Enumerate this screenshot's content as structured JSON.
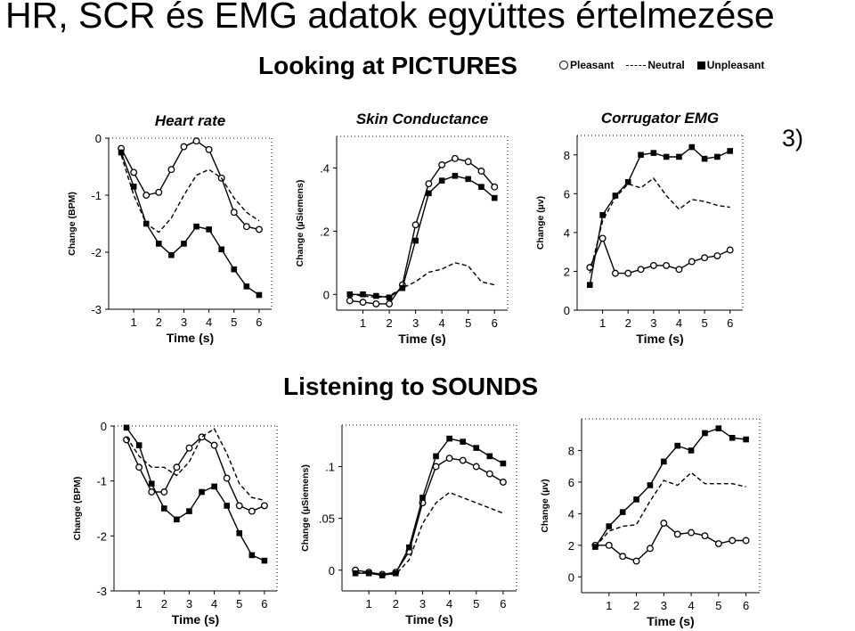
{
  "slide": {
    "title": "HR, SCR és EMG adatok együttes értelmezése",
    "number": "3)"
  },
  "legend": {
    "pleasant": "Pleasant",
    "neutral": "Neutral",
    "unpleasant": "Unpleasant"
  },
  "sections": [
    {
      "title": "Looking at PICTURES"
    },
    {
      "title": "Listening to SOUNDS"
    }
  ],
  "chart_data": [
    {
      "type": "line",
      "section": 0,
      "title": "Heart rate",
      "xlabel": "Time (s)",
      "ylabel": "Change (BPM)",
      "ylim": [
        -3,
        0
      ],
      "xlim": [
        0,
        6.5
      ],
      "yticks": [
        0,
        -1,
        -2,
        -3
      ],
      "ytick_labels": [
        "0",
        "-1",
        "-2",
        "-3"
      ],
      "xticks": [
        1,
        2,
        3,
        4,
        5,
        6
      ],
      "xtick_labels": [
        "1",
        "2",
        "3",
        "4",
        "5",
        "6"
      ],
      "x": [
        0.5,
        1,
        1.5,
        2,
        2.5,
        3,
        3.5,
        4,
        4.5,
        5,
        5.5,
        6
      ],
      "series": [
        {
          "name": "Pleasant",
          "marker": "circle",
          "dashed": false,
          "values": [
            -0.18,
            -0.6,
            -1.0,
            -0.95,
            -0.55,
            -0.15,
            -0.05,
            -0.2,
            -0.7,
            -1.3,
            -1.55,
            -1.6
          ]
        },
        {
          "name": "Neutral",
          "marker": "none",
          "dashed": true,
          "values": [
            -0.3,
            -1.0,
            -1.5,
            -1.65,
            -1.4,
            -1.0,
            -0.65,
            -0.55,
            -0.7,
            -1.05,
            -1.3,
            -1.45
          ]
        },
        {
          "name": "Unpleasant",
          "marker": "square",
          "dashed": false,
          "values": [
            -0.25,
            -0.85,
            -1.5,
            -1.85,
            -2.05,
            -1.85,
            -1.55,
            -1.6,
            -1.95,
            -2.3,
            -2.6,
            -2.75
          ]
        }
      ]
    },
    {
      "type": "line",
      "section": 0,
      "title": "Skin Conductance",
      "xlabel": "Time (s)",
      "ylabel": "Change (µSiemens)",
      "ylim": [
        -0.05,
        0.5
      ],
      "xlim": [
        0,
        6.5
      ],
      "yticks": [
        0,
        0.2,
        0.4
      ],
      "ytick_labels": [
        "0",
        ".2",
        ".4"
      ],
      "xticks": [
        1,
        2,
        3,
        4,
        5,
        6
      ],
      "xtick_labels": [
        "1",
        "2",
        "3",
        "4",
        "5",
        "6"
      ],
      "x": [
        0.5,
        1,
        1.5,
        2,
        2.5,
        3,
        3.5,
        4,
        4.5,
        5,
        5.5,
        6
      ],
      "series": [
        {
          "name": "Pleasant",
          "marker": "circle",
          "dashed": false,
          "values": [
            -0.02,
            -0.025,
            -0.03,
            -0.03,
            0.03,
            0.22,
            0.35,
            0.41,
            0.43,
            0.42,
            0.39,
            0.34
          ]
        },
        {
          "name": "Neutral",
          "marker": "none",
          "dashed": true,
          "values": [
            0.0,
            -0.005,
            -0.01,
            -0.005,
            0.02,
            0.04,
            0.07,
            0.08,
            0.1,
            0.09,
            0.04,
            0.03
          ]
        },
        {
          "name": "Unpleasant",
          "marker": "square",
          "dashed": false,
          "values": [
            0.0,
            0.0,
            -0.005,
            -0.01,
            0.02,
            0.17,
            0.32,
            0.36,
            0.375,
            0.365,
            0.34,
            0.305
          ]
        }
      ]
    },
    {
      "type": "line",
      "section": 0,
      "title": "Corrugator  EMG",
      "xlabel": "Time (s)",
      "ylabel": "Change (µv)",
      "ylim": [
        0,
        9
      ],
      "xlim": [
        0,
        6.5
      ],
      "yticks": [
        0,
        2,
        4,
        6,
        8
      ],
      "ytick_labels": [
        "0",
        "2",
        "4",
        "6",
        "8"
      ],
      "xticks": [
        1,
        2,
        3,
        4,
        5,
        6
      ],
      "xtick_labels": [
        "1",
        "2",
        "3",
        "4",
        "5",
        "6"
      ],
      "x": [
        0.5,
        1,
        1.5,
        2,
        2.5,
        3,
        3.5,
        4,
        4.5,
        5,
        5.5,
        6
      ],
      "series": [
        {
          "name": "Pleasant",
          "marker": "circle",
          "dashed": false,
          "values": [
            2.2,
            3.7,
            1.9,
            1.9,
            2.1,
            2.3,
            2.3,
            2.1,
            2.5,
            2.7,
            2.8,
            3.1
          ]
        },
        {
          "name": "Neutral",
          "marker": "none",
          "dashed": true,
          "values": [
            1.9,
            4.6,
            5.8,
            6.5,
            6.3,
            6.8,
            5.9,
            5.2,
            5.7,
            5.6,
            5.4,
            5.3
          ]
        },
        {
          "name": "Unpleasant",
          "marker": "square",
          "dashed": false,
          "values": [
            1.3,
            4.9,
            5.9,
            6.6,
            8.0,
            8.1,
            7.9,
            7.9,
            8.4,
            7.8,
            7.9,
            8.2
          ]
        }
      ]
    },
    {
      "type": "line",
      "section": 1,
      "title": "",
      "xlabel": "Time (s)",
      "ylabel": "Change (BPM)",
      "ylim": [
        -3,
        0
      ],
      "xlim": [
        0,
        6.5
      ],
      "yticks": [
        0,
        -1,
        -2,
        -3
      ],
      "ytick_labels": [
        "0",
        "-1",
        "-2",
        "-3"
      ],
      "xticks": [
        1,
        2,
        3,
        4,
        5,
        6
      ],
      "xtick_labels": [
        "1",
        "2",
        "3",
        "4",
        "5",
        "6"
      ],
      "x": [
        0.5,
        1,
        1.5,
        2,
        2.5,
        3,
        3.5,
        4,
        4.5,
        5,
        5.5,
        6
      ],
      "series": [
        {
          "name": "Pleasant",
          "marker": "circle",
          "dashed": false,
          "values": [
            -0.25,
            -0.75,
            -1.2,
            -1.2,
            -0.75,
            -0.4,
            -0.2,
            -0.35,
            -0.95,
            -1.45,
            -1.55,
            -1.45
          ]
        },
        {
          "name": "Neutral",
          "marker": "none",
          "dashed": true,
          "values": [
            -0.2,
            -0.55,
            -0.75,
            -0.75,
            -0.9,
            -0.65,
            -0.2,
            -0.05,
            -0.5,
            -1.05,
            -1.3,
            -1.35
          ]
        },
        {
          "name": "Unpleasant",
          "marker": "square",
          "dashed": false,
          "values": [
            -0.03,
            -0.35,
            -1.05,
            -1.5,
            -1.7,
            -1.55,
            -1.2,
            -1.1,
            -1.45,
            -1.95,
            -2.35,
            -2.45
          ]
        }
      ]
    },
    {
      "type": "line",
      "section": 1,
      "title": "",
      "xlabel": "Time (s)",
      "ylabel": "Change (µSiemens)",
      "ylim": [
        -0.02,
        0.14
      ],
      "xlim": [
        0,
        6.5
      ],
      "yticks": [
        0,
        0.05,
        0.1
      ],
      "ytick_labels": [
        "0",
        ".05",
        ".1"
      ],
      "xticks": [
        1,
        2,
        3,
        4,
        5,
        6
      ],
      "xtick_labels": [
        "1",
        "2",
        "3",
        "4",
        "5",
        "6"
      ],
      "x": [
        0.5,
        1,
        1.5,
        2,
        2.5,
        3,
        3.5,
        4,
        4.5,
        5,
        5.5,
        6
      ],
      "series": [
        {
          "name": "Pleasant",
          "marker": "circle",
          "dashed": false,
          "values": [
            0.0,
            -0.002,
            -0.004,
            -0.002,
            0.018,
            0.065,
            0.1,
            0.108,
            0.106,
            0.1,
            0.093,
            0.085
          ]
        },
        {
          "name": "Neutral",
          "marker": "none",
          "dashed": true,
          "values": [
            -0.002,
            -0.003,
            -0.004,
            -0.004,
            0.01,
            0.045,
            0.065,
            0.075,
            0.07,
            0.065,
            0.06,
            0.055
          ]
        },
        {
          "name": "Unpleasant",
          "marker": "square",
          "dashed": false,
          "values": [
            -0.003,
            -0.003,
            -0.005,
            -0.003,
            0.022,
            0.07,
            0.11,
            0.127,
            0.124,
            0.118,
            0.11,
            0.103
          ]
        }
      ]
    },
    {
      "type": "line",
      "section": 1,
      "title": "",
      "xlabel": "Time (s)",
      "ylabel": "Change (µv)",
      "ylim": [
        -1,
        10
      ],
      "xlim": [
        0,
        6.5
      ],
      "yticks": [
        0,
        2,
        4,
        6,
        8
      ],
      "ytick_labels": [
        "0",
        "2",
        "4",
        "6",
        "8"
      ],
      "xticks": [
        1,
        2,
        3,
        4,
        5,
        6
      ],
      "xtick_labels": [
        "1",
        "2",
        "3",
        "4",
        "5",
        "6"
      ],
      "x": [
        0.5,
        1,
        1.5,
        2,
        2.5,
        3,
        3.5,
        4,
        4.5,
        5,
        5.5,
        6
      ],
      "series": [
        {
          "name": "Pleasant",
          "marker": "circle",
          "dashed": false,
          "values": [
            2.0,
            2.0,
            1.3,
            1.0,
            1.8,
            3.4,
            2.7,
            2.8,
            2.6,
            2.1,
            2.3,
            2.3
          ]
        },
        {
          "name": "Neutral",
          "marker": "none",
          "dashed": true,
          "values": [
            1.9,
            2.9,
            3.2,
            3.3,
            4.8,
            6.1,
            5.8,
            6.6,
            5.9,
            5.9,
            5.9,
            5.7
          ]
        },
        {
          "name": "Unpleasant",
          "marker": "square",
          "dashed": false,
          "values": [
            1.9,
            3.2,
            4.1,
            4.9,
            5.8,
            7.3,
            8.3,
            8.0,
            9.1,
            9.4,
            8.8,
            8.7
          ]
        }
      ]
    }
  ]
}
